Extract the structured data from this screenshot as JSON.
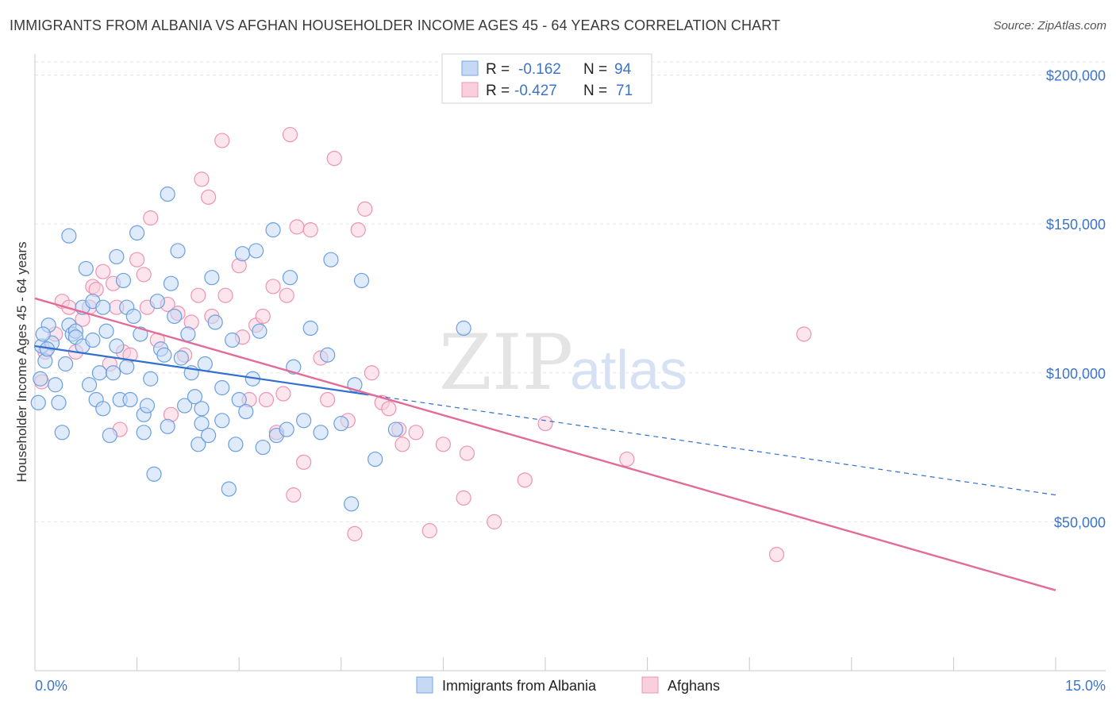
{
  "title": "IMMIGRANTS FROM ALBANIA VS AFGHAN HOUSEHOLDER INCOME AGES 45 - 64 YEARS CORRELATION CHART",
  "source": "Source: ZipAtlas.com",
  "watermark": {
    "zip": "ZIP",
    "atlas": "atlas"
  },
  "legend": {
    "r_label": "R =",
    "n_label": "N =",
    "entries": [
      {
        "r": "-0.162",
        "n": "94",
        "fill": "#c5d9f5",
        "stroke": "#7aa6e3"
      },
      {
        "r": "-0.427",
        "n": "71",
        "fill": "#f9cfdc",
        "stroke": "#ec94b2"
      }
    ]
  },
  "chart_data": {
    "type": "scatter",
    "ylabel": "Householder Income Ages 45 - 64 years",
    "xlim": [
      0,
      15
    ],
    "ylim": [
      0,
      210000
    ],
    "x_tick_labels": [
      {
        "value": 0,
        "label": "0.0%"
      },
      {
        "value": 15,
        "label": "15.0%"
      }
    ],
    "y_ticks": [
      {
        "value": 50000,
        "label": "$50,000"
      },
      {
        "value": 100000,
        "label": "$100,000"
      },
      {
        "value": 150000,
        "label": "$150,000"
      },
      {
        "value": 200000,
        "label": "$200,000"
      }
    ],
    "grid": true,
    "series": [
      {
        "name": "Immigrants from Albania",
        "color": "#6b9fe0",
        "fill": "#c5d9f5",
        "trend": {
          "x0": 0,
          "y0": 109000,
          "x_solid_end": 4.9,
          "x1": 15,
          "y1": 59000,
          "color": "#2f6fcf"
        },
        "points": [
          [
            0.1,
            109000
          ],
          [
            0.15,
            104000
          ],
          [
            0.2,
            116000
          ],
          [
            0.25,
            110000
          ],
          [
            0.3,
            96000
          ],
          [
            0.35,
            90000
          ],
          [
            0.4,
            80000
          ],
          [
            0.45,
            103000
          ],
          [
            0.5,
            116000
          ],
          [
            0.5,
            146000
          ],
          [
            0.55,
            113000
          ],
          [
            0.6,
            114000
          ],
          [
            0.6,
            112000
          ],
          [
            0.7,
            122000
          ],
          [
            0.7,
            109000
          ],
          [
            0.75,
            135000
          ],
          [
            0.8,
            96000
          ],
          [
            0.85,
            124000
          ],
          [
            0.85,
            111000
          ],
          [
            0.9,
            91000
          ],
          [
            0.95,
            100000
          ],
          [
            1.0,
            88000
          ],
          [
            1.0,
            122000
          ],
          [
            1.05,
            114000
          ],
          [
            1.1,
            79000
          ],
          [
            1.15,
            100000
          ],
          [
            1.2,
            109000
          ],
          [
            1.2,
            139000
          ],
          [
            1.25,
            91000
          ],
          [
            1.3,
            131000
          ],
          [
            1.35,
            122000
          ],
          [
            1.35,
            102000
          ],
          [
            1.4,
            91000
          ],
          [
            1.45,
            119000
          ],
          [
            1.5,
            147000
          ],
          [
            1.55,
            113000
          ],
          [
            1.6,
            86000
          ],
          [
            1.65,
            89000
          ],
          [
            1.7,
            98000
          ],
          [
            1.75,
            66000
          ],
          [
            1.8,
            124000
          ],
          [
            1.85,
            108000
          ],
          [
            1.9,
            106000
          ],
          [
            1.95,
            82000
          ],
          [
            1.95,
            160000
          ],
          [
            2.0,
            130000
          ],
          [
            2.05,
            119000
          ],
          [
            2.1,
            141000
          ],
          [
            2.15,
            105000
          ],
          [
            2.2,
            89000
          ],
          [
            2.25,
            113000
          ],
          [
            2.3,
            100000
          ],
          [
            2.35,
            92000
          ],
          [
            2.4,
            76000
          ],
          [
            2.45,
            83000
          ],
          [
            2.45,
            88000
          ],
          [
            2.5,
            103000
          ],
          [
            2.55,
            79000
          ],
          [
            2.6,
            132000
          ],
          [
            2.65,
            117000
          ],
          [
            2.75,
            84000
          ],
          [
            2.75,
            95000
          ],
          [
            2.85,
            61000
          ],
          [
            2.9,
            111000
          ],
          [
            3.0,
            91000
          ],
          [
            3.05,
            140000
          ],
          [
            3.1,
            87000
          ],
          [
            3.2,
            98000
          ],
          [
            3.25,
            141000
          ],
          [
            3.3,
            114000
          ],
          [
            3.35,
            75000
          ],
          [
            3.5,
            148000
          ],
          [
            3.55,
            79000
          ],
          [
            3.7,
            81000
          ],
          [
            3.75,
            132000
          ],
          [
            3.8,
            102000
          ],
          [
            3.95,
            84000
          ],
          [
            4.05,
            115000
          ],
          [
            4.2,
            80000
          ],
          [
            4.3,
            106000
          ],
          [
            4.35,
            138000
          ],
          [
            4.5,
            83000
          ],
          [
            4.65,
            56000
          ],
          [
            4.7,
            96000
          ],
          [
            4.8,
            131000
          ],
          [
            5.0,
            71000
          ],
          [
            5.3,
            81000
          ],
          [
            6.3,
            115000
          ],
          [
            0.05,
            90000
          ],
          [
            0.08,
            98000
          ],
          [
            0.12,
            113000
          ],
          [
            0.18,
            108000
          ],
          [
            1.6,
            80000
          ],
          [
            2.95,
            76000
          ]
        ]
      },
      {
        "name": "Afghans",
        "color": "#ec94b2",
        "fill": "#f9cfdc",
        "trend": {
          "x0": 0,
          "y0": 125000,
          "x1": 15,
          "y1": 27000,
          "color": "#e36b98"
        },
        "points": [
          [
            0.1,
            97000
          ],
          [
            0.15,
            107000
          ],
          [
            0.3,
            113000
          ],
          [
            0.4,
            124000
          ],
          [
            0.5,
            122000
          ],
          [
            0.6,
            107000
          ],
          [
            0.7,
            118000
          ],
          [
            0.8,
            122000
          ],
          [
            0.85,
            129000
          ],
          [
            0.9,
            128000
          ],
          [
            1.0,
            134000
          ],
          [
            1.1,
            103000
          ],
          [
            1.15,
            130000
          ],
          [
            1.2,
            122000
          ],
          [
            1.3,
            107000
          ],
          [
            1.4,
            106000
          ],
          [
            1.5,
            138000
          ],
          [
            1.6,
            133000
          ],
          [
            1.65,
            122000
          ],
          [
            1.7,
            152000
          ],
          [
            1.8,
            111000
          ],
          [
            1.95,
            123000
          ],
          [
            2.0,
            86000
          ],
          [
            2.1,
            120000
          ],
          [
            2.2,
            106000
          ],
          [
            2.3,
            117000
          ],
          [
            2.4,
            126000
          ],
          [
            2.45,
            165000
          ],
          [
            2.55,
            159000
          ],
          [
            2.6,
            119000
          ],
          [
            2.75,
            178000
          ],
          [
            2.8,
            126000
          ],
          [
            3.0,
            136000
          ],
          [
            3.05,
            112000
          ],
          [
            3.15,
            91000
          ],
          [
            3.25,
            116000
          ],
          [
            3.35,
            119000
          ],
          [
            3.4,
            91000
          ],
          [
            3.5,
            129000
          ],
          [
            3.55,
            80000
          ],
          [
            3.65,
            93000
          ],
          [
            3.7,
            126000
          ],
          [
            3.75,
            180000
          ],
          [
            3.8,
            59000
          ],
          [
            3.85,
            149000
          ],
          [
            3.95,
            70000
          ],
          [
            4.05,
            148000
          ],
          [
            4.2,
            105000
          ],
          [
            4.3,
            91000
          ],
          [
            4.4,
            172000
          ],
          [
            4.6,
            84000
          ],
          [
            4.7,
            46000
          ],
          [
            4.75,
            148000
          ],
          [
            4.85,
            155000
          ],
          [
            4.95,
            100000
          ],
          [
            5.1,
            90000
          ],
          [
            5.2,
            88000
          ],
          [
            5.35,
            81000
          ],
          [
            5.4,
            76000
          ],
          [
            5.6,
            80000
          ],
          [
            5.8,
            47000
          ],
          [
            6.0,
            76000
          ],
          [
            6.3,
            58000
          ],
          [
            6.35,
            73000
          ],
          [
            6.75,
            50000
          ],
          [
            7.2,
            64000
          ],
          [
            7.5,
            83000
          ],
          [
            8.7,
            71000
          ],
          [
            10.9,
            39000
          ],
          [
            11.3,
            113000
          ],
          [
            1.25,
            81000
          ]
        ]
      }
    ]
  },
  "bottom_legend": [
    "Immigrants from Albania",
    "Afghans"
  ]
}
